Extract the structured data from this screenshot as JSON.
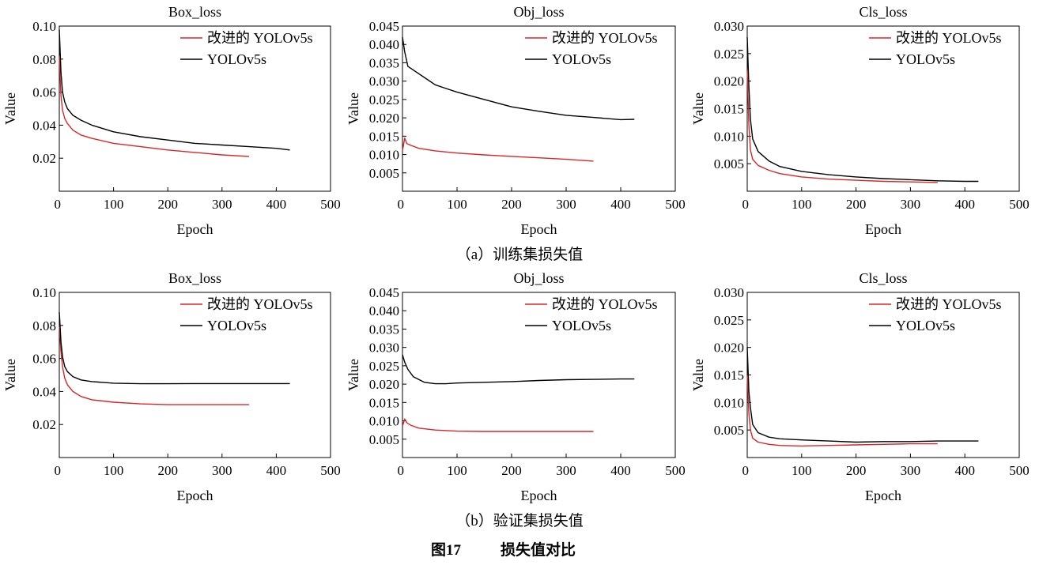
{
  "figure": {
    "row_captions": [
      "（a）训练集损失值",
      "（b）验证集损失值"
    ],
    "figure_number": "图17",
    "figure_title": "损失值对比"
  },
  "colors": {
    "improved": "#d62728",
    "baseline": "#000000"
  },
  "chart_data": [
    {
      "type": "line",
      "title": "Box_loss",
      "xlabel": "Epoch",
      "ylabel": "Value",
      "xlim": [
        0,
        500
      ],
      "ylim": [
        0,
        0.1
      ],
      "xticks": [
        "0",
        "100",
        "200",
        "300",
        "400",
        "500"
      ],
      "yticks": [
        "0.02",
        "0.04",
        "0.06",
        "0.08",
        "0.10"
      ],
      "legend_position": "top-right",
      "grid": false,
      "series": [
        {
          "name": "改进的 YOLOv5s",
          "color": "#d62728",
          "points": [
            [
              0,
              0.082
            ],
            [
              3,
              0.058
            ],
            [
              6,
              0.049
            ],
            [
              10,
              0.044
            ],
            [
              15,
              0.041
            ],
            [
              25,
              0.037
            ],
            [
              40,
              0.034
            ],
            [
              60,
              0.032
            ],
            [
              100,
              0.029
            ],
            [
              150,
              0.027
            ],
            [
              200,
              0.025
            ],
            [
              250,
              0.0235
            ],
            [
              300,
              0.022
            ],
            [
              350,
              0.021
            ]
          ]
        },
        {
          "name": "YOLOv5s",
          "color": "#000000",
          "points": [
            [
              0,
              0.098
            ],
            [
              3,
              0.072
            ],
            [
              6,
              0.06
            ],
            [
              10,
              0.054
            ],
            [
              15,
              0.05
            ],
            [
              25,
              0.046
            ],
            [
              40,
              0.043
            ],
            [
              60,
              0.04
            ],
            [
              100,
              0.036
            ],
            [
              150,
              0.033
            ],
            [
              200,
              0.031
            ],
            [
              250,
              0.029
            ],
            [
              300,
              0.028
            ],
            [
              350,
              0.027
            ],
            [
              400,
              0.026
            ],
            [
              425,
              0.025
            ]
          ]
        }
      ]
    },
    {
      "type": "line",
      "title": "Obj_loss",
      "xlabel": "Epoch",
      "ylabel": "Value",
      "xlim": [
        0,
        500
      ],
      "ylim": [
        0,
        0.045
      ],
      "xticks": [
        "0",
        "100",
        "200",
        "300",
        "400",
        "500"
      ],
      "yticks": [
        "0.005",
        "0.010",
        "0.015",
        "0.020",
        "0.025",
        "0.030",
        "0.035",
        "0.040",
        "0.045"
      ],
      "legend_position": "top-right",
      "grid": false,
      "series": [
        {
          "name": "改进的 YOLOv5s",
          "color": "#d62728",
          "points": [
            [
              0,
              0.011
            ],
            [
              4,
              0.0145
            ],
            [
              8,
              0.013
            ],
            [
              15,
              0.0125
            ],
            [
              30,
              0.0117
            ],
            [
              60,
              0.011
            ],
            [
              100,
              0.0104
            ],
            [
              150,
              0.0099
            ],
            [
              200,
              0.0095
            ],
            [
              250,
              0.0091
            ],
            [
              300,
              0.0087
            ],
            [
              350,
              0.0082
            ]
          ]
        },
        {
          "name": "YOLOv5s",
          "color": "#000000",
          "points": [
            [
              0,
              0.042
            ],
            [
              4,
              0.038
            ],
            [
              10,
              0.034
            ],
            [
              20,
              0.033
            ],
            [
              40,
              0.031
            ],
            [
              60,
              0.029
            ],
            [
              80,
              0.028
            ],
            [
              100,
              0.027
            ],
            [
              150,
              0.025
            ],
            [
              200,
              0.023
            ],
            [
              250,
              0.0218
            ],
            [
              300,
              0.0207
            ],
            [
              350,
              0.0201
            ],
            [
              400,
              0.0195
            ],
            [
              425,
              0.0196
            ]
          ]
        }
      ]
    },
    {
      "type": "line",
      "title": "Cls_loss",
      "xlabel": "Epoch",
      "ylabel": "Value",
      "xlim": [
        0,
        500
      ],
      "ylim": [
        0,
        0.03
      ],
      "xticks": [
        "0",
        "100",
        "200",
        "300",
        "400",
        "500"
      ],
      "yticks": [
        "0.005",
        "0.010",
        "0.015",
        "0.020",
        "0.025",
        "0.030"
      ],
      "legend_position": "top-right",
      "grid": false,
      "series": [
        {
          "name": "改进的 YOLOv5s",
          "color": "#d62728",
          "points": [
            [
              0,
              0.022
            ],
            [
              3,
              0.012
            ],
            [
              6,
              0.0075
            ],
            [
              10,
              0.0058
            ],
            [
              20,
              0.0047
            ],
            [
              40,
              0.0038
            ],
            [
              60,
              0.0032
            ],
            [
              100,
              0.0026
            ],
            [
              150,
              0.0022
            ],
            [
              200,
              0.002
            ],
            [
              250,
              0.0018
            ],
            [
              300,
              0.0017
            ],
            [
              350,
              0.0016
            ]
          ]
        },
        {
          "name": "YOLOv5s",
          "color": "#000000",
          "points": [
            [
              0,
              0.028
            ],
            [
              3,
              0.019
            ],
            [
              6,
              0.013
            ],
            [
              10,
              0.0095
            ],
            [
              20,
              0.0072
            ],
            [
              40,
              0.0055
            ],
            [
              60,
              0.0045
            ],
            [
              100,
              0.0036
            ],
            [
              150,
              0.003
            ],
            [
              200,
              0.0026
            ],
            [
              250,
              0.0023
            ],
            [
              300,
              0.0021
            ],
            [
              350,
              0.0019
            ],
            [
              400,
              0.0018
            ],
            [
              425,
              0.0018
            ]
          ]
        }
      ]
    },
    {
      "type": "line",
      "title": "Box_loss",
      "xlabel": "Epoch",
      "ylabel": "Value",
      "xlim": [
        0,
        500
      ],
      "ylim": [
        0,
        0.1
      ],
      "xticks": [
        "0",
        "100",
        "200",
        "300",
        "400",
        "500"
      ],
      "yticks": [
        "0.02",
        "0.04",
        "0.06",
        "0.08",
        "0.10"
      ],
      "legend_position": "top-right",
      "grid": false,
      "series": [
        {
          "name": "改进的 YOLOv5s",
          "color": "#d62728",
          "points": [
            [
              0,
              0.08
            ],
            [
              3,
              0.064
            ],
            [
              6,
              0.055
            ],
            [
              10,
              0.048
            ],
            [
              15,
              0.044
            ],
            [
              25,
              0.04
            ],
            [
              40,
              0.037
            ],
            [
              60,
              0.035
            ],
            [
              100,
              0.0335
            ],
            [
              150,
              0.0325
            ],
            [
              200,
              0.032
            ],
            [
              250,
              0.032
            ],
            [
              300,
              0.032
            ],
            [
              350,
              0.032
            ]
          ]
        },
        {
          "name": "YOLOv5s",
          "color": "#000000",
          "points": [
            [
              0,
              0.088
            ],
            [
              3,
              0.07
            ],
            [
              6,
              0.061
            ],
            [
              10,
              0.055
            ],
            [
              15,
              0.052
            ],
            [
              25,
              0.049
            ],
            [
              40,
              0.047
            ],
            [
              60,
              0.046
            ],
            [
              100,
              0.045
            ],
            [
              150,
              0.0447
            ],
            [
              200,
              0.0447
            ],
            [
              250,
              0.0448
            ],
            [
              300,
              0.0448
            ],
            [
              350,
              0.0448
            ],
            [
              400,
              0.0448
            ],
            [
              425,
              0.0448
            ]
          ]
        }
      ]
    },
    {
      "type": "line",
      "title": "Obj_loss",
      "xlabel": "Epoch",
      "ylabel": "Value",
      "xlim": [
        0,
        500
      ],
      "ylim": [
        0,
        0.045
      ],
      "xticks": [
        "0",
        "100",
        "200",
        "300",
        "400",
        "500"
      ],
      "yticks": [
        "0.005",
        "0.010",
        "0.015",
        "0.020",
        "0.025",
        "0.030",
        "0.035",
        "0.040",
        "0.045"
      ],
      "legend_position": "top-right",
      "grid": false,
      "series": [
        {
          "name": "改进的 YOLOv5s",
          "color": "#d62728",
          "points": [
            [
              0,
              0.0085
            ],
            [
              4,
              0.0105
            ],
            [
              8,
              0.0095
            ],
            [
              15,
              0.0088
            ],
            [
              30,
              0.008
            ],
            [
              60,
              0.0075
            ],
            [
              100,
              0.0072
            ],
            [
              150,
              0.0071
            ],
            [
              200,
              0.0071
            ],
            [
              250,
              0.0071
            ],
            [
              300,
              0.0071
            ],
            [
              350,
              0.0071
            ]
          ]
        },
        {
          "name": "YOLOv5s",
          "color": "#000000",
          "points": [
            [
              0,
              0.028
            ],
            [
              4,
              0.026
            ],
            [
              10,
              0.024
            ],
            [
              20,
              0.022
            ],
            [
              40,
              0.0205
            ],
            [
              60,
              0.0201
            ],
            [
              80,
              0.0201
            ],
            [
              100,
              0.0203
            ],
            [
              150,
              0.0205
            ],
            [
              200,
              0.0207
            ],
            [
              250,
              0.021
            ],
            [
              300,
              0.0212
            ],
            [
              350,
              0.0213
            ],
            [
              400,
              0.0214
            ],
            [
              425,
              0.0214
            ]
          ]
        }
      ]
    },
    {
      "type": "line",
      "title": "Cls_loss",
      "xlabel": "Epoch",
      "ylabel": "Value",
      "xlim": [
        0,
        500
      ],
      "ylim": [
        0,
        0.03
      ],
      "xticks": [
        "0",
        "100",
        "200",
        "300",
        "400",
        "500"
      ],
      "yticks": [
        "0.005",
        "0.010",
        "0.015",
        "0.020",
        "0.025",
        "0.030"
      ],
      "legend_position": "top-right",
      "grid": false,
      "series": [
        {
          "name": "改进的 YOLOv5s",
          "color": "#d62728",
          "points": [
            [
              0,
              0.015
            ],
            [
              3,
              0.008
            ],
            [
              6,
              0.005
            ],
            [
              10,
              0.0035
            ],
            [
              20,
              0.0028
            ],
            [
              40,
              0.0024
            ],
            [
              60,
              0.0022
            ],
            [
              100,
              0.0021
            ],
            [
              150,
              0.0022
            ],
            [
              200,
              0.0023
            ],
            [
              250,
              0.0024
            ],
            [
              300,
              0.0025
            ],
            [
              350,
              0.0025
            ]
          ]
        },
        {
          "name": "YOLOv5s",
          "color": "#000000",
          "points": [
            [
              0,
              0.02
            ],
            [
              3,
              0.012
            ],
            [
              6,
              0.009
            ],
            [
              10,
              0.006
            ],
            [
              20,
              0.0045
            ],
            [
              40,
              0.0037
            ],
            [
              60,
              0.0034
            ],
            [
              100,
              0.0032
            ],
            [
              150,
              0.003
            ],
            [
              200,
              0.0028
            ],
            [
              250,
              0.0029
            ],
            [
              300,
              0.0029
            ],
            [
              350,
              0.003
            ],
            [
              400,
              0.003
            ],
            [
              425,
              0.003
            ]
          ]
        }
      ]
    }
  ]
}
